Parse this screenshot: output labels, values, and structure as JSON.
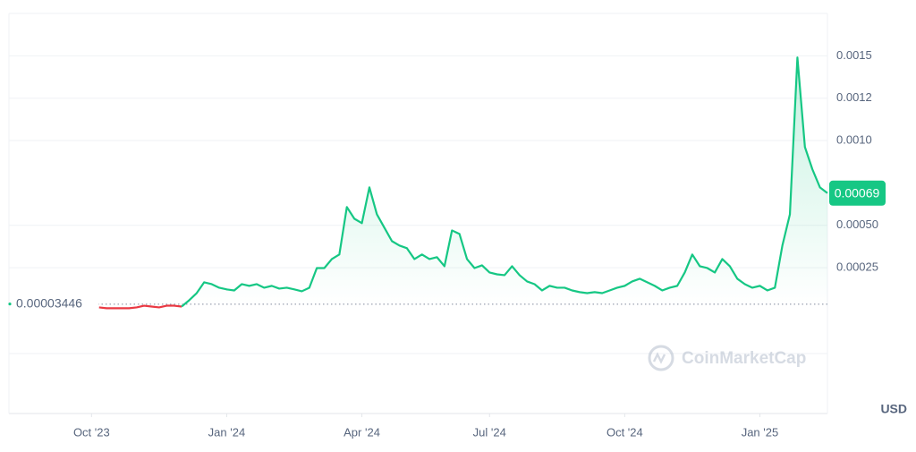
{
  "chart_data": {
    "type": "line",
    "series": [
      {
        "name": null,
        "color": "#16c784",
        "below_color": "#ea3943",
        "values": [
          3.6e-05,
          null,
          null,
          null,
          null,
          null,
          null,
          null,
          null,
          null,
          null,
          null,
          1.6e-05,
          1.1e-05,
          1.1e-05,
          1.1e-05,
          1.1e-05,
          1.6e-05,
          2.6e-05,
          2.1e-05,
          1.6e-05,
          2.6e-05,
          2.6e-05,
          2.1e-05,
          5.8e-05,
          0.0001,
          0.000164,
          0.000153,
          0.000132,
          0.000122,
          0.000116,
          0.000153,
          0.000143,
          0.000153,
          0.000132,
          0.000143,
          0.000127,
          0.000132,
          0.000122,
          0.000111,
          0.000132,
          0.000248,
          0.000248,
          0.000301,
          0.000328,
          0.000608,
          0.000539,
          0.000513,
          0.000724,
          0.000565,
          0.000486,
          0.000407,
          0.000381,
          0.000365,
          0.000301,
          0.000328,
          0.000301,
          0.000312,
          0.000259,
          0.00047,
          0.000449,
          0.000301,
          0.000248,
          0.000264,
          0.000222,
          0.000211,
          0.000206,
          0.000259,
          0.000206,
          0.000169,
          0.000153,
          0.000116,
          0.000143,
          0.000132,
          0.000132,
          0.000116,
          0.000106,
          0.0001,
          0.000106,
          0.0001,
          0.000116,
          0.000132,
          0.000143,
          0.000169,
          0.000185,
          0.000164,
          0.000143,
          0.000116,
          0.000132,
          0.000143,
          0.000222,
          0.000328,
          0.000259,
          0.000248,
          0.000222,
          0.000301,
          0.000259,
          0.000185,
          0.000153,
          0.000132,
          0.000143,
          0.000116,
          0.000132,
          0.000381,
          0.000565,
          0.00149,
          0.000962,
          0.00083,
          0.000724,
          0.00069
        ]
      }
    ],
    "reference_value": 3.446e-05,
    "current_value": 0.00069,
    "xlim": [
      0,
      109
    ],
    "xticks": [
      {
        "value": 11,
        "label": "Oct '23"
      },
      {
        "value": 29,
        "label": "Jan '24"
      },
      {
        "value": 47,
        "label": "Apr '24"
      },
      {
        "value": 64,
        "label": "Jul '24"
      },
      {
        "value": 82,
        "label": "Oct '24"
      },
      {
        "value": 100,
        "label": "Jan '25"
      }
    ],
    "ylim": [
      -0.00061,
      0.00175
    ],
    "yticks": [
      0.00025,
      {
        "value": 0.0005,
        "label": "0.00050"
      },
      {
        "value": 0.001,
        "label": "0.0010"
      },
      {
        "value": 0.00125,
        "label": "0.0012"
      },
      0.0015
    ],
    "y_unit": "USD",
    "watermark": "CoinMarketCap",
    "grid": true
  }
}
